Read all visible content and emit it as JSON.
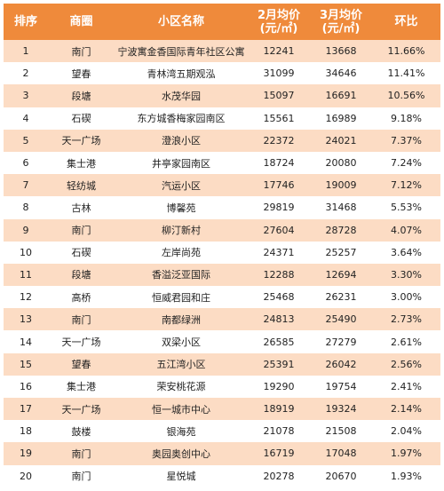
{
  "headers": {
    "rank": "排序",
    "area": "商圈",
    "name": "小区名称",
    "feb_line1": "2月均价",
    "feb_line2": "(元/㎡)",
    "mar_line1": "3月均价",
    "mar_line2": "(元/㎡)",
    "change": "环比"
  },
  "colors": {
    "header_bg": "#ef8a3b",
    "stripe_bg": "#fcdcc4"
  },
  "rows": [
    {
      "rank": "1",
      "area": "南门",
      "name": "宁波寓金香国际青年社区公寓",
      "feb": "12241",
      "mar": "13668",
      "change": "11.66%"
    },
    {
      "rank": "2",
      "area": "望春",
      "name": "青林湾五期观泓",
      "feb": "31099",
      "mar": "34646",
      "change": "11.41%"
    },
    {
      "rank": "3",
      "area": "段塘",
      "name": "水茂华园",
      "feb": "15097",
      "mar": "16691",
      "change": "10.56%"
    },
    {
      "rank": "4",
      "area": "石碶",
      "name": "东方城香梅家园南区",
      "feb": "15561",
      "mar": "16989",
      "change": "9.18%"
    },
    {
      "rank": "5",
      "area": "天一广场",
      "name": "澄浪小区",
      "feb": "22372",
      "mar": "24021",
      "change": "7.37%"
    },
    {
      "rank": "6",
      "area": "集士港",
      "name": "井亭家园南区",
      "feb": "18724",
      "mar": "20080",
      "change": "7.24%"
    },
    {
      "rank": "7",
      "area": "轻纺城",
      "name": "汽运小区",
      "feb": "17746",
      "mar": "19009",
      "change": "7.12%"
    },
    {
      "rank": "8",
      "area": "古林",
      "name": "博馨苑",
      "feb": "29819",
      "mar": "31468",
      "change": "5.53%"
    },
    {
      "rank": "9",
      "area": "南门",
      "name": "柳汀新村",
      "feb": "27604",
      "mar": "28728",
      "change": "4.07%"
    },
    {
      "rank": "10",
      "area": "石碶",
      "name": "左岸尚苑",
      "feb": "24371",
      "mar": "25257",
      "change": "3.64%"
    },
    {
      "rank": "11",
      "area": "段塘",
      "name": "香溢泛亚国际",
      "feb": "12288",
      "mar": "12694",
      "change": "3.30%"
    },
    {
      "rank": "12",
      "area": "高桥",
      "name": "恒威君园和庄",
      "feb": "25468",
      "mar": "26231",
      "change": "3.00%"
    },
    {
      "rank": "13",
      "area": "南门",
      "name": "南都绿洲",
      "feb": "24813",
      "mar": "25490",
      "change": "2.73%"
    },
    {
      "rank": "14",
      "area": "天一广场",
      "name": "双梁小区",
      "feb": "26585",
      "mar": "27279",
      "change": "2.61%"
    },
    {
      "rank": "15",
      "area": "望春",
      "name": "五江湾小区",
      "feb": "25391",
      "mar": "26042",
      "change": "2.56%"
    },
    {
      "rank": "16",
      "area": "集士港",
      "name": "荣安桃花源",
      "feb": "19290",
      "mar": "19754",
      "change": "2.41%"
    },
    {
      "rank": "17",
      "area": "天一广场",
      "name": "恒一城市中心",
      "feb": "18919",
      "mar": "19324",
      "change": "2.14%"
    },
    {
      "rank": "18",
      "area": "鼓楼",
      "name": "银海苑",
      "feb": "21078",
      "mar": "21508",
      "change": "2.04%"
    },
    {
      "rank": "19",
      "area": "南门",
      "name": "奥园奥创中心",
      "feb": "16719",
      "mar": "17048",
      "change": "1.97%"
    },
    {
      "rank": "20",
      "area": "南门",
      "name": "星悦城",
      "feb": "20278",
      "mar": "20670",
      "change": "1.93%"
    }
  ]
}
